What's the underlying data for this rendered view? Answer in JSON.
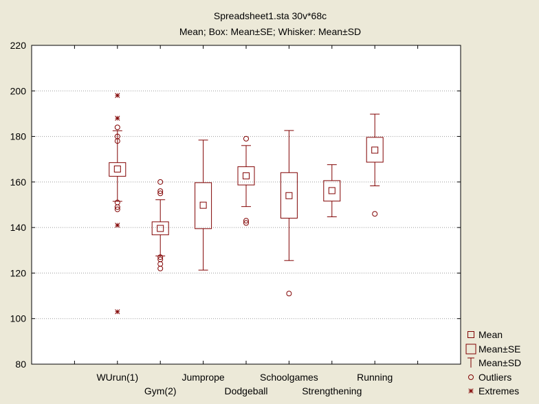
{
  "chart_data": {
    "type": "box",
    "title": "Spreadsheet1.sta 30v*68c",
    "subtitle": "Mean; Box: Mean±SE; Whisker: Mean±SD",
    "ylim": [
      80,
      220
    ],
    "yticks": [
      80,
      100,
      120,
      140,
      160,
      180,
      200,
      220
    ],
    "grid": true,
    "legend_position": "bottom-right",
    "colors": {
      "series": "#800000",
      "background": "#ece9d8",
      "plot": "#ffffff",
      "grid": "#999999"
    },
    "categories": [
      "WUrun(1)",
      "Gym(2)",
      "Jumprope",
      "Dodgeball",
      "Schoolgames",
      "Strengthening",
      "Running"
    ],
    "groups": [
      {
        "category": "WUrun(1)",
        "mean": 165.7,
        "se_low": 162.5,
        "se_high": 168.5,
        "sd_low": 151.5,
        "sd_high": 182.5,
        "outliers": [
          184,
          180,
          178,
          151,
          149,
          148
        ],
        "extremes": [
          198,
          188,
          141,
          103
        ]
      },
      {
        "category": "Gym(2)",
        "mean": 139.6,
        "se_low": 136.8,
        "se_high": 142.5,
        "sd_low": 127.5,
        "sd_high": 152.2,
        "outliers": [
          160,
          156,
          155,
          127,
          126,
          124,
          122
        ],
        "extremes": []
      },
      {
        "category": "Jumprope",
        "mean": 149.8,
        "se_low": 139.5,
        "se_high": 159.7,
        "sd_low": 121.3,
        "sd_high": 178.4,
        "outliers": [],
        "extremes": []
      },
      {
        "category": "Dodgeball",
        "mean": 162.7,
        "se_low": 158.7,
        "se_high": 166.7,
        "sd_low": 149.2,
        "sd_high": 176.0,
        "outliers": [
          179,
          143,
          142
        ],
        "extremes": []
      },
      {
        "category": "Schoolgames",
        "mean": 154.0,
        "se_low": 144.1,
        "se_high": 164.1,
        "sd_low": 125.5,
        "sd_high": 182.6,
        "outliers": [
          111
        ],
        "extremes": []
      },
      {
        "category": "Strengthening",
        "mean": 156.2,
        "se_low": 151.6,
        "se_high": 160.6,
        "sd_low": 144.7,
        "sd_high": 167.6,
        "outliers": [],
        "extremes": []
      },
      {
        "category": "Running",
        "mean": 174.0,
        "se_low": 168.7,
        "se_high": 179.6,
        "sd_low": 158.3,
        "sd_high": 189.8,
        "outliers": [
          146
        ],
        "extremes": []
      }
    ],
    "legend": [
      {
        "symbol": "mean",
        "label": "Mean"
      },
      {
        "symbol": "box",
        "label": "Mean±SE"
      },
      {
        "symbol": "whisker",
        "label": "Mean±SD"
      },
      {
        "symbol": "outlier",
        "label": "Outliers"
      },
      {
        "symbol": "extreme",
        "label": "Extremes"
      }
    ]
  }
}
